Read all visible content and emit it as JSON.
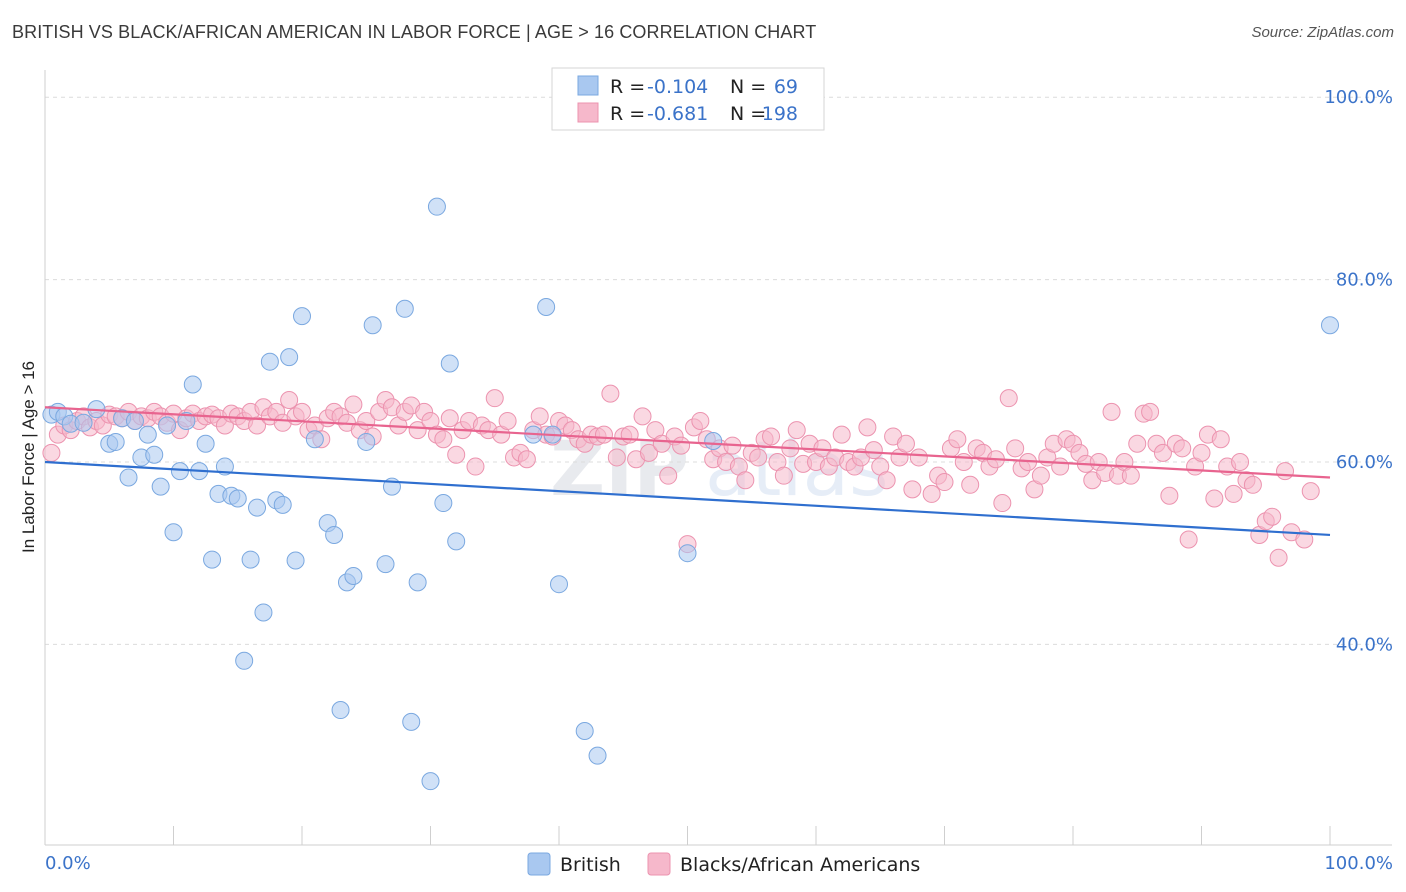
{
  "title": "BRITISH VS BLACK/AFRICAN AMERICAN IN LABOR FORCE | AGE > 16 CORRELATION CHART",
  "source": "Source: ZipAtlas.com",
  "watermark": "ZIPatlas",
  "legend_top": {
    "rows": [
      {
        "r_label": "R =",
        "r_value": "-0.104",
        "n_label": "N =",
        "n_value": "69",
        "color": "#a9c8f0"
      },
      {
        "r_label": "R =",
        "r_value": "-0.681",
        "n_label": "N =",
        "n_value": "198",
        "color": "#f6b8cb"
      }
    ]
  },
  "legend_bottom": {
    "british": "British",
    "black": "Blacks/African Americans"
  },
  "colors": {
    "british_fill": "#a9c8f0",
    "british_stroke": "#7aa8e0",
    "british_line": "#2f6fcf",
    "black_fill": "#f6b8cb",
    "black_stroke": "#ec93af",
    "black_line": "#e8648f",
    "axis_label": "#3b73c9",
    "grid": "#dcdcdc"
  },
  "chart_data": {
    "type": "scatter",
    "title": "BRITISH VS BLACK/AFRICAN AMERICAN IN LABOR FORCE | AGE > 16 CORRELATION CHART",
    "xlabel": "",
    "ylabel": "In Labor Force | Age > 16",
    "xlim": [
      0,
      100
    ],
    "ylim": [
      18,
      102
    ],
    "x_tick_labels": [
      "0.0%",
      "100.0%"
    ],
    "y_ticks": [
      40,
      60,
      80,
      100
    ],
    "y_tick_labels": [
      "40.0%",
      "60.0%",
      "80.0%",
      "100.0%"
    ],
    "grid": true,
    "legend_placement": "top-center",
    "series": [
      {
        "name": "British",
        "R": -0.104,
        "N": 69,
        "trend": {
          "x": [
            0,
            100
          ],
          "y": [
            60.0,
            52.0
          ]
        },
        "points": [
          [
            0.5,
            65.2
          ],
          [
            1,
            65.5
          ],
          [
            1.5,
            65.0
          ],
          [
            2,
            64.2
          ],
          [
            3,
            64.3
          ],
          [
            4,
            65.8
          ],
          [
            5,
            62.0
          ],
          [
            5.5,
            62.2
          ],
          [
            6,
            64.8
          ],
          [
            6.5,
            58.3
          ],
          [
            7,
            64.5
          ],
          [
            7.5,
            60.5
          ],
          [
            8,
            63.0
          ],
          [
            8.5,
            60.8
          ],
          [
            9,
            57.3
          ],
          [
            9.5,
            64.0
          ],
          [
            10,
            52.3
          ],
          [
            10.5,
            59.0
          ],
          [
            11,
            64.5
          ],
          [
            11.5,
            68.5
          ],
          [
            12,
            59.0
          ],
          [
            12.5,
            62.0
          ],
          [
            13,
            49.3
          ],
          [
            13.5,
            56.5
          ],
          [
            14,
            59.5
          ],
          [
            14.5,
            56.3
          ],
          [
            15,
            56.0
          ],
          [
            15.5,
            38.2
          ],
          [
            16,
            49.3
          ],
          [
            16.5,
            55.0
          ],
          [
            17,
            43.5
          ],
          [
            17.5,
            71.0
          ],
          [
            18,
            55.8
          ],
          [
            18.5,
            55.3
          ],
          [
            19,
            71.5
          ],
          [
            19.5,
            49.2
          ],
          [
            20,
            76.0
          ],
          [
            21,
            62.5
          ],
          [
            22,
            53.3
          ],
          [
            22.5,
            52.0
          ],
          [
            23,
            32.8
          ],
          [
            23.5,
            46.8
          ],
          [
            24,
            47.5
          ],
          [
            25,
            62.2
          ],
          [
            25.5,
            75.0
          ],
          [
            26.5,
            48.8
          ],
          [
            27,
            57.3
          ],
          [
            28,
            76.8
          ],
          [
            28.5,
            31.5
          ],
          [
            29,
            46.8
          ],
          [
            30,
            25.0
          ],
          [
            30.5,
            88.0
          ],
          [
            31,
            55.5
          ],
          [
            31.5,
            70.8
          ],
          [
            32,
            51.3
          ],
          [
            38,
            63.0
          ],
          [
            39,
            77.0
          ],
          [
            39.5,
            63.0
          ],
          [
            40,
            46.6
          ],
          [
            42,
            30.5
          ],
          [
            43,
            27.8
          ],
          [
            50,
            50.0
          ],
          [
            52,
            62.3
          ],
          [
            100,
            75.0
          ]
        ]
      },
      {
        "name": "Blacks/African Americans",
        "R": -0.681,
        "N": 198,
        "trend": {
          "x": [
            0,
            100
          ],
          "y": [
            66.0,
            58.3
          ]
        },
        "points": [
          [
            0.5,
            61.0
          ],
          [
            1,
            63.0
          ],
          [
            1.5,
            64.0
          ],
          [
            2,
            63.5
          ],
          [
            2.5,
            64.5
          ],
          [
            3,
            65.0
          ],
          [
            3.5,
            63.8
          ],
          [
            4,
            64.5
          ],
          [
            4.5,
            64.0
          ],
          [
            5,
            65.2
          ],
          [
            5.5,
            65.0
          ],
          [
            6,
            64.8
          ],
          [
            6.5,
            65.5
          ],
          [
            7,
            64.5
          ],
          [
            7.5,
            65.0
          ],
          [
            8,
            64.8
          ],
          [
            8.5,
            65.5
          ],
          [
            9,
            65.0
          ],
          [
            9.5,
            64.3
          ],
          [
            10,
            65.3
          ],
          [
            10.5,
            63.5
          ],
          [
            11,
            64.8
          ],
          [
            11.5,
            65.3
          ],
          [
            12,
            64.5
          ],
          [
            12.5,
            65.0
          ],
          [
            13,
            65.2
          ],
          [
            13.5,
            64.8
          ],
          [
            14,
            64.0
          ],
          [
            14.5,
            65.3
          ],
          [
            15,
            65.0
          ],
          [
            15.5,
            64.5
          ],
          [
            16,
            65.5
          ],
          [
            16.5,
            64.0
          ],
          [
            17,
            66.0
          ],
          [
            17.5,
            65.0
          ],
          [
            18,
            65.5
          ],
          [
            18.5,
            64.3
          ],
          [
            19,
            66.8
          ],
          [
            19.5,
            65.0
          ],
          [
            20,
            65.5
          ],
          [
            20.5,
            63.5
          ],
          [
            21,
            64.0
          ],
          [
            21.5,
            62.5
          ],
          [
            22,
            64.8
          ],
          [
            22.5,
            65.5
          ],
          [
            23,
            65.0
          ],
          [
            23.5,
            64.3
          ],
          [
            24,
            66.3
          ],
          [
            24.5,
            63.5
          ],
          [
            25,
            64.5
          ],
          [
            25.5,
            62.8
          ],
          [
            26,
            65.5
          ],
          [
            26.5,
            66.8
          ],
          [
            27,
            66.0
          ],
          [
            27.5,
            64.0
          ],
          [
            28,
            65.5
          ],
          [
            28.5,
            66.2
          ],
          [
            29,
            63.5
          ],
          [
            29.5,
            65.5
          ],
          [
            30,
            64.5
          ],
          [
            30.5,
            63.0
          ],
          [
            31,
            62.5
          ],
          [
            31.5,
            64.8
          ],
          [
            32,
            60.8
          ],
          [
            32.5,
            63.5
          ],
          [
            33,
            64.5
          ],
          [
            33.5,
            59.5
          ],
          [
            34,
            64.0
          ],
          [
            34.5,
            63.5
          ],
          [
            35,
            67.0
          ],
          [
            35.5,
            63.0
          ],
          [
            36,
            64.5
          ],
          [
            36.5,
            60.5
          ],
          [
            37,
            61.0
          ],
          [
            37.5,
            60.3
          ],
          [
            38,
            63.5
          ],
          [
            38.5,
            65.0
          ],
          [
            39,
            63.0
          ],
          [
            39.5,
            62.8
          ],
          [
            40,
            64.5
          ],
          [
            40.5,
            64.0
          ],
          [
            41,
            63.5
          ],
          [
            41.5,
            62.5
          ],
          [
            42,
            62.0
          ],
          [
            42.5,
            63.0
          ],
          [
            43,
            62.8
          ],
          [
            43.5,
            63.0
          ],
          [
            44,
            67.5
          ],
          [
            44.5,
            60.5
          ],
          [
            45,
            62.8
          ],
          [
            45.5,
            63.0
          ],
          [
            46,
            60.3
          ],
          [
            46.5,
            65.0
          ],
          [
            47,
            61.0
          ],
          [
            47.5,
            63.5
          ],
          [
            48,
            62.0
          ],
          [
            48.5,
            58.5
          ],
          [
            49,
            62.8
          ],
          [
            49.5,
            61.8
          ],
          [
            50,
            51.0
          ],
          [
            50.5,
            63.8
          ],
          [
            51,
            64.5
          ],
          [
            51.5,
            62.5
          ],
          [
            52,
            60.3
          ],
          [
            52.5,
            61.5
          ],
          [
            53,
            60.0
          ],
          [
            53.5,
            61.8
          ],
          [
            54,
            59.5
          ],
          [
            54.5,
            58.0
          ],
          [
            55,
            61.0
          ],
          [
            55.5,
            60.5
          ],
          [
            56,
            62.5
          ],
          [
            56.5,
            62.8
          ],
          [
            57,
            60.0
          ],
          [
            57.5,
            58.5
          ],
          [
            58,
            61.5
          ],
          [
            58.5,
            63.5
          ],
          [
            59,
            59.8
          ],
          [
            59.5,
            62.0
          ],
          [
            60,
            60.0
          ],
          [
            60.5,
            61.5
          ],
          [
            61,
            59.5
          ],
          [
            61.5,
            60.5
          ],
          [
            62,
            63.0
          ],
          [
            62.5,
            60.0
          ],
          [
            63,
            59.5
          ],
          [
            63.5,
            60.5
          ],
          [
            64,
            63.8
          ],
          [
            64.5,
            61.3
          ],
          [
            65,
            59.5
          ],
          [
            65.5,
            58.0
          ],
          [
            66,
            62.8
          ],
          [
            66.5,
            60.5
          ],
          [
            67,
            62.0
          ],
          [
            67.5,
            57.0
          ],
          [
            68,
            60.5
          ],
          [
            69,
            56.5
          ],
          [
            69.5,
            58.5
          ],
          [
            70,
            57.8
          ],
          [
            70.5,
            61.5
          ],
          [
            71,
            62.5
          ],
          [
            71.5,
            60.0
          ],
          [
            72,
            57.5
          ],
          [
            72.5,
            61.5
          ],
          [
            73,
            61.0
          ],
          [
            73.5,
            59.5
          ],
          [
            74,
            60.3
          ],
          [
            74.5,
            55.5
          ],
          [
            75,
            67.0
          ],
          [
            75.5,
            61.5
          ],
          [
            76,
            59.3
          ],
          [
            76.5,
            60.0
          ],
          [
            77,
            57.0
          ],
          [
            77.5,
            58.5
          ],
          [
            78,
            60.5
          ],
          [
            78.5,
            62.0
          ],
          [
            79,
            59.5
          ],
          [
            79.5,
            62.5
          ],
          [
            80,
            62.0
          ],
          [
            80.5,
            61.0
          ],
          [
            81,
            59.8
          ],
          [
            81.5,
            58.0
          ],
          [
            82,
            60.0
          ],
          [
            82.5,
            58.8
          ],
          [
            83,
            65.5
          ],
          [
            83.5,
            58.5
          ],
          [
            84,
            60.0
          ],
          [
            84.5,
            58.5
          ],
          [
            85,
            62.0
          ],
          [
            85.5,
            65.3
          ],
          [
            86,
            65.5
          ],
          [
            86.5,
            62.0
          ],
          [
            87,
            61.0
          ],
          [
            87.5,
            56.3
          ],
          [
            88,
            62.0
          ],
          [
            88.5,
            61.5
          ],
          [
            89,
            51.5
          ],
          [
            89.5,
            59.5
          ],
          [
            90,
            61.0
          ],
          [
            90.5,
            63.0
          ],
          [
            91,
            56.0
          ],
          [
            91.5,
            62.5
          ],
          [
            92,
            59.5
          ],
          [
            92.5,
            56.5
          ],
          [
            93,
            60.0
          ],
          [
            93.5,
            58.0
          ],
          [
            94,
            57.5
          ],
          [
            94.5,
            52.0
          ],
          [
            95,
            53.5
          ],
          [
            95.5,
            54.0
          ],
          [
            96,
            49.5
          ],
          [
            96.5,
            59.0
          ],
          [
            97,
            52.3
          ],
          [
            98,
            51.5
          ],
          [
            98.5,
            56.8
          ]
        ]
      }
    ]
  }
}
